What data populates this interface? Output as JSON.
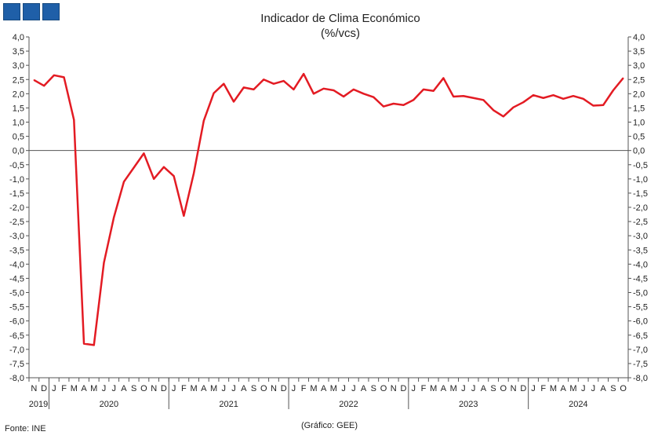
{
  "header": {
    "title": "Indicador de Clima Económico",
    "subtitle": "(%/vcs)"
  },
  "footer": {
    "source": "Fonte: INE",
    "credit": "(Gráfico: GEE)"
  },
  "colors": {
    "line": "#e31b23",
    "axis": "#555555",
    "logo": "#1f5fa8"
  },
  "chart_data": {
    "type": "line",
    "title": "Indicador de Clima Económico",
    "subtitle": "(%/vcs)",
    "ylim": [
      -8.0,
      4.0
    ],
    "y_tick_step": 0.5,
    "y_ticks_both_sides": true,
    "zero_line": true,
    "grid": false,
    "legend": "none",
    "x": [
      "N",
      "D",
      "J",
      "F",
      "M",
      "A",
      "M",
      "J",
      "J",
      "A",
      "S",
      "O",
      "N",
      "D",
      "J",
      "F",
      "M",
      "A",
      "M",
      "J",
      "J",
      "A",
      "S",
      "O",
      "N",
      "D",
      "J",
      "F",
      "M",
      "A",
      "M",
      "J",
      "J",
      "A",
      "S",
      "O",
      "N",
      "D",
      "J",
      "F",
      "M",
      "A",
      "M",
      "J",
      "J",
      "A",
      "S",
      "O",
      "N",
      "D",
      "J",
      "F",
      "M",
      "A",
      "M",
      "J",
      "J",
      "A",
      "S",
      "O"
    ],
    "years": [
      {
        "label": "2019",
        "start": 0,
        "count": 2
      },
      {
        "label": "2020",
        "start": 2,
        "count": 12
      },
      {
        "label": "2021",
        "start": 14,
        "count": 12
      },
      {
        "label": "2022",
        "start": 26,
        "count": 12
      },
      {
        "label": "2023",
        "start": 38,
        "count": 12
      },
      {
        "label": "2024",
        "start": 50,
        "count": 10
      }
    ],
    "series": [
      {
        "values": [
          2.48,
          2.28,
          2.65,
          2.58,
          1.08,
          -6.8,
          -6.85,
          -3.95,
          -2.35,
          -1.1,
          -0.6,
          -0.1,
          -1.0,
          -0.58,
          -0.9,
          -2.3,
          -0.8,
          1.05,
          2.02,
          2.35,
          1.72,
          2.22,
          2.15,
          2.5,
          2.35,
          2.45,
          2.15,
          2.7,
          2.0,
          2.18,
          2.12,
          1.9,
          2.15,
          2.0,
          1.88,
          1.55,
          1.65,
          1.6,
          1.78,
          2.15,
          2.1,
          2.55,
          1.9,
          1.92,
          1.85,
          1.78,
          1.42,
          1.2,
          1.52,
          1.7,
          1.95,
          1.85,
          1.95,
          1.82,
          1.92,
          1.82,
          1.58,
          1.6,
          2.12,
          2.55
        ]
      }
    ]
  }
}
